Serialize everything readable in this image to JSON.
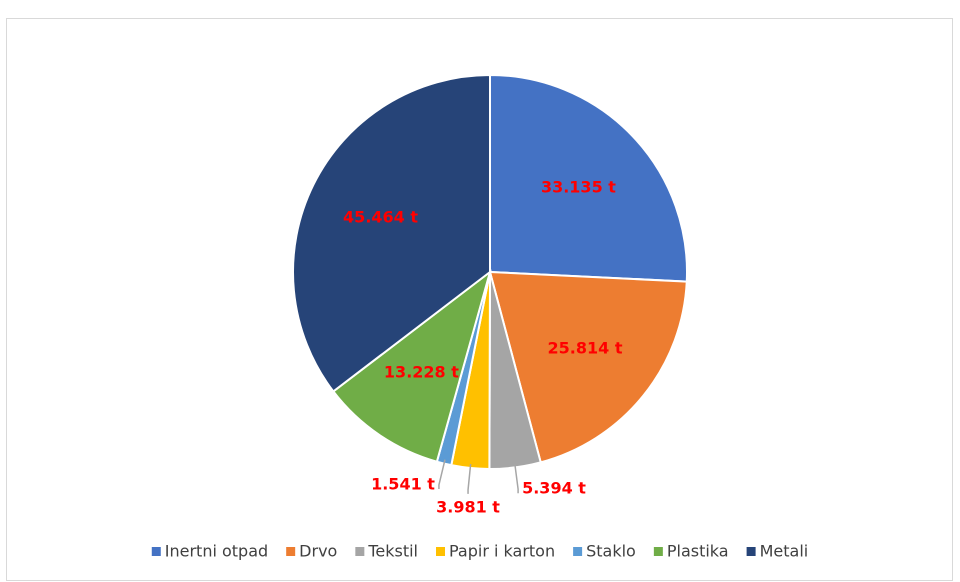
{
  "chart_data": {
    "type": "pie",
    "categories": [
      "Inertni otpad",
      "Drvo",
      "Tekstil",
      "Papir i karton",
      "Staklo",
      "Plastika",
      "Metali"
    ],
    "values": [
      33135,
      25814,
      5394,
      3981,
      1541,
      13228,
      45464
    ],
    "value_labels": [
      "33.135 t",
      "25.814 t",
      "5.394 t",
      "3.981 t",
      "1.541 t",
      "13.228 t",
      "45.464 t"
    ],
    "colors": [
      "#4472c4",
      "#ed7d31",
      "#a5a5a5",
      "#ffc000",
      "#5b9bd5",
      "#70ad47",
      "#264478"
    ],
    "legend": "bottom"
  }
}
